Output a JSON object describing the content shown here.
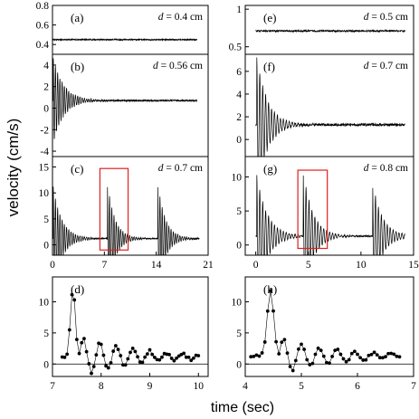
{
  "figure": {
    "ylabel": "velocity (cm/s)",
    "xlabel": "time (sec)"
  },
  "chart_data": [
    {
      "id": "a",
      "type": "line",
      "panel_label": "(a)",
      "annotation_var": "d",
      "annotation_value": " = 0.4 cm",
      "xlim": [
        0,
        21
      ],
      "ylim": [
        0.3,
        0.8
      ],
      "yticks": [
        0.4,
        0.6,
        0.8
      ],
      "xticks": [],
      "signal": {
        "kind": "noise",
        "base": 0.45,
        "noise": 0.006,
        "t_end": 19.5
      }
    },
    {
      "id": "b",
      "type": "line",
      "panel_label": "(b)",
      "annotation_var": "d",
      "annotation_value": " = 0.56 cm",
      "xlim": [
        0,
        21
      ],
      "ylim": [
        -4.5,
        5
      ],
      "yticks": [
        -4,
        -2,
        0,
        2,
        4
      ],
      "xticks": [],
      "signal": {
        "kind": "ringdown",
        "base": 0.7,
        "noise": 0.08,
        "t_end": 19.5,
        "impulses": [
          {
            "t": 0.1,
            "amp": 4,
            "decay": 1.4,
            "period": 0.3
          }
        ]
      }
    },
    {
      "id": "c",
      "type": "line",
      "panel_label": "(c)",
      "annotation_var": "d",
      "annotation_value": " = 0.7 cm",
      "xlim": [
        0,
        21
      ],
      "ylim": [
        -2,
        17
      ],
      "yticks": [
        0,
        5,
        10,
        15
      ],
      "xticks": [
        0,
        7,
        14,
        21
      ],
      "highlight": {
        "x0": 6.4,
        "x1": 10.2,
        "y0": -1,
        "y1": 14.7
      },
      "signal": {
        "kind": "ringdown",
        "base": 1.2,
        "noise": 0.12,
        "t_end": 19.8,
        "impulses": [
          {
            "t": 0.1,
            "amp": 10,
            "decay": 1.2,
            "period": 0.3
          },
          {
            "t": 7.4,
            "amp": 11,
            "decay": 1.0,
            "period": 0.3
          },
          {
            "t": 14.2,
            "amp": 11,
            "decay": 1.0,
            "period": 0.3
          }
        ]
      }
    },
    {
      "id": "d",
      "type": "scatter",
      "panel_label": "(d)",
      "xlim": [
        7,
        10.2
      ],
      "ylim": [
        -2,
        14
      ],
      "yticks": [
        0,
        5,
        10
      ],
      "xticks": [
        7,
        8,
        9,
        10
      ],
      "zero_line": true,
      "points": {
        "t0": 7.0,
        "step": 0.05,
        "x_start": 7.2,
        "x_end": 10.0,
        "base": 1.2,
        "noise": 0.25,
        "pulse_t": 7.42,
        "pulse_amp": 11,
        "pulse_width": 0.07,
        "osc_amp": 3.2,
        "osc_decay": 1.1,
        "osc_period": 0.34,
        "osc_start": 7.55
      }
    },
    {
      "id": "e",
      "type": "line",
      "panel_label": "(e)",
      "annotation_var": "d",
      "annotation_value": " = 0.5 cm",
      "xlim": [
        -1,
        15
      ],
      "ylim": [
        0.4,
        1.05
      ],
      "yticks": [
        0.5,
        1.0
      ],
      "xticks": [],
      "signal": {
        "kind": "noise",
        "base": 0.71,
        "noise": 0.012,
        "t_end": 14.2
      }
    },
    {
      "id": "f",
      "type": "line",
      "panel_label": "(f)",
      "annotation_var": "d",
      "annotation_value": " = 0.7 cm",
      "xlim": [
        -1,
        15
      ],
      "ylim": [
        -1.5,
        7.5
      ],
      "yticks": [
        0,
        2,
        4,
        6
      ],
      "xticks": [],
      "signal": {
        "kind": "ringdown",
        "base": 1.3,
        "noise": 0.12,
        "t_end": 14.2,
        "impulses": [
          {
            "t": 0.1,
            "amp": 6,
            "decay": 1.0,
            "period": 0.28
          }
        ]
      }
    },
    {
      "id": "g",
      "type": "line",
      "panel_label": "(g)",
      "annotation_var": "d",
      "annotation_value": " = 0.8 cm",
      "xlim": [
        -1,
        15
      ],
      "ylim": [
        -1.5,
        13
      ],
      "yticks": [
        0,
        5,
        10
      ],
      "xticks": [
        0,
        5,
        10,
        15
      ],
      "highlight": {
        "x0": 4.0,
        "x1": 6.8,
        "y0": -0.5,
        "y1": 11
      },
      "signal": {
        "kind": "ringdown",
        "base": 1.3,
        "noise": 0.12,
        "t_end": 14.2,
        "impulses": [
          {
            "t": 0.1,
            "amp": 9,
            "decay": 1.0,
            "period": 0.28
          },
          {
            "t": 4.5,
            "amp": 10,
            "decay": 0.9,
            "period": 0.28
          },
          {
            "t": 11.1,
            "amp": 8,
            "decay": 0.9,
            "period": 0.28
          }
        ]
      }
    },
    {
      "id": "h",
      "type": "scatter",
      "panel_label": "(h)",
      "xlim": [
        4,
        7
      ],
      "ylim": [
        -2,
        14
      ],
      "yticks": [
        0,
        5,
        10
      ],
      "xticks": [
        4,
        5,
        6,
        7
      ],
      "zero_line": true,
      "points": {
        "t0": 4.0,
        "step": 0.05,
        "x_start": 4.1,
        "x_end": 6.75,
        "base": 1.3,
        "noise": 0.2,
        "pulse_t": 4.45,
        "pulse_amp": 10.5,
        "pulse_width": 0.08,
        "osc_amp": 3.0,
        "osc_decay": 0.9,
        "osc_period": 0.32,
        "osc_start": 4.6
      }
    }
  ]
}
